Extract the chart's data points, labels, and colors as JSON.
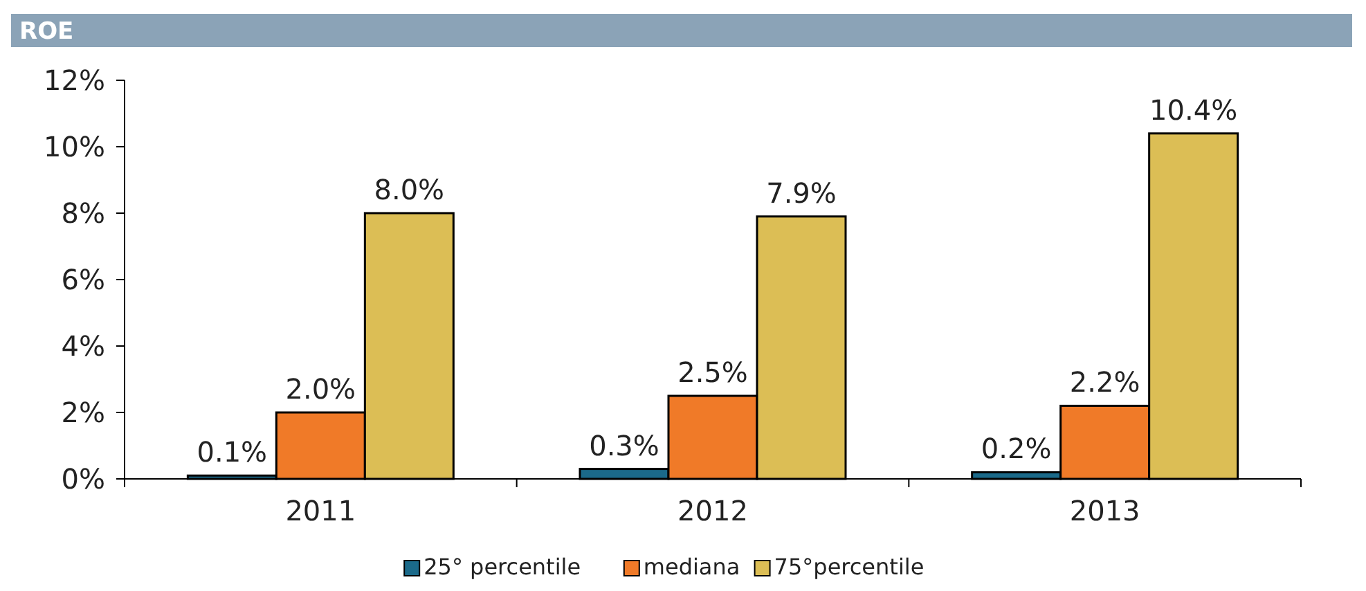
{
  "chart_data": {
    "type": "bar",
    "title": "ROE",
    "categories": [
      "2011",
      "2012",
      "2013"
    ],
    "series": [
      {
        "name": "25° percentile",
        "color": "#1b6a8a",
        "values": [
          0.1,
          0.3,
          0.2
        ],
        "value_labels": [
          "0.1%",
          "0.3%",
          "0.2%"
        ]
      },
      {
        "name": "mediana",
        "color": "#f07a28",
        "values": [
          2.0,
          2.5,
          2.2
        ],
        "value_labels": [
          "2.0%",
          "2.5%",
          "2.2%"
        ]
      },
      {
        "name": "75°percentile",
        "color": "#dcbe55",
        "values": [
          8.0,
          7.9,
          10.4
        ],
        "value_labels": [
          "8.0%",
          "7.9%",
          "10.4%"
        ]
      }
    ],
    "ylim": [
      0,
      12
    ],
    "yticks": [
      {
        "value": 0,
        "label": "0%"
      },
      {
        "value": 2,
        "label": "2%"
      },
      {
        "value": 4,
        "label": "4%"
      },
      {
        "value": 6,
        "label": "6%"
      },
      {
        "value": 8,
        "label": "8%"
      },
      {
        "value": 10,
        "label": "10%"
      },
      {
        "value": 12,
        "label": "12%"
      }
    ],
    "grid": false,
    "legend": "bottom"
  }
}
